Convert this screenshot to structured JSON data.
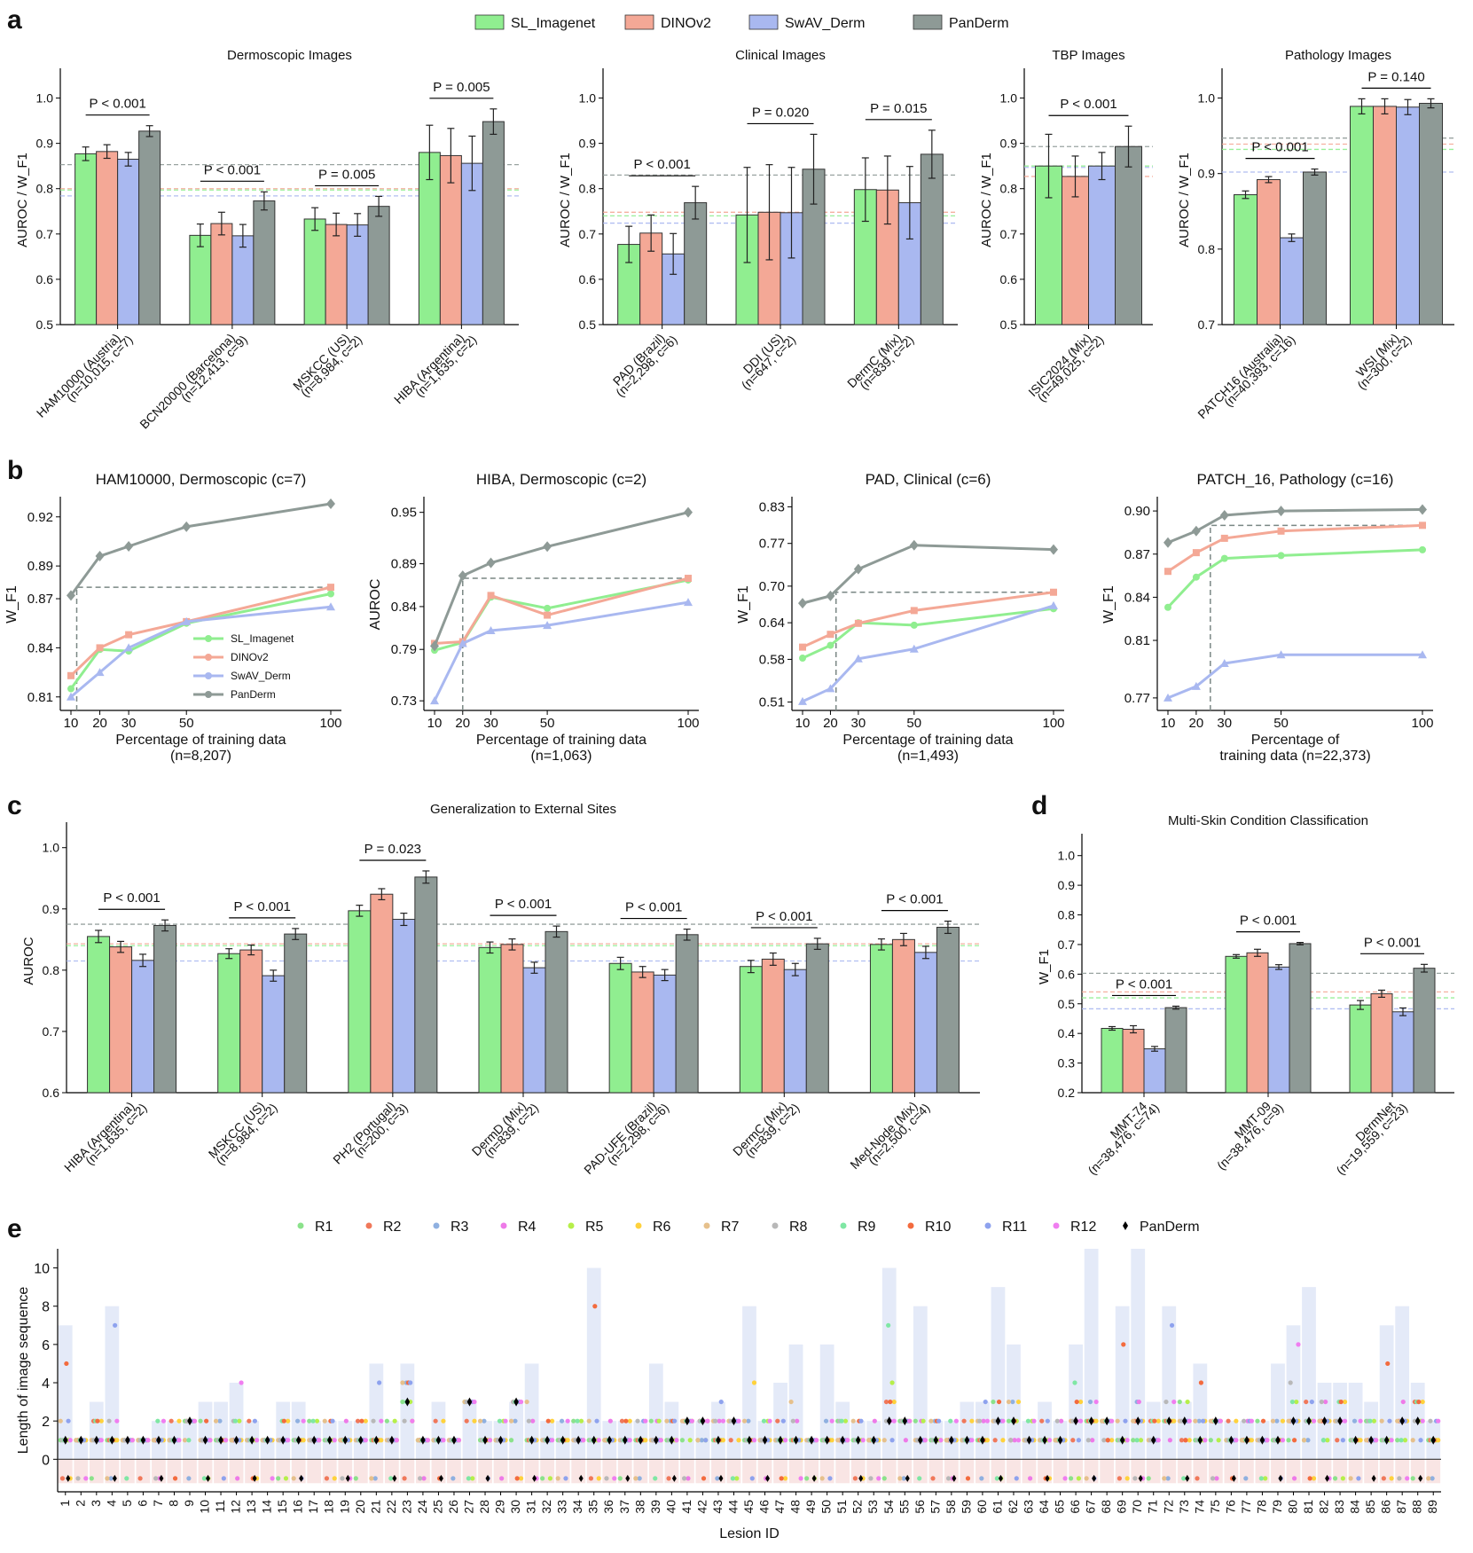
{
  "colors": {
    "SL_Imagenet": "#90EE90",
    "DINOv2": "#F4A896",
    "SwAV_Derm": "#A9B8F0",
    "PanDerm": "#8E9A96",
    "axis": "#000000"
  },
  "panel_letters": [
    "a",
    "b",
    "c",
    "d",
    "e"
  ],
  "legend_top": [
    "SL_Imagenet",
    "DINOv2",
    "SwAV_Derm",
    "PanDerm"
  ],
  "chart_data": [
    {
      "id": "a1",
      "type": "bar",
      "title": "Dermoscopic Images",
      "ylabel": "AUROC / W_F1",
      "ylim": [
        0.5,
        1.05
      ],
      "yticks": [
        "0.5",
        "0.6",
        "0.7",
        "0.8",
        "0.9",
        "1.0"
      ],
      "categories": [
        "HAM10000 (Austria)\n(n=10,015, c=7)",
        "BCN20000 (Barcelona)\n(n=12,413, c=9)",
        "MSKCC (US)\n(n=8,984, c=2)",
        "HIBA (Argentina)\n(n=1,635, c=2)"
      ],
      "series": [
        {
          "name": "SL_Imagenet",
          "values": [
            0.877,
            0.697,
            0.733,
            0.88
          ],
          "err": [
            0.015,
            0.025,
            0.025,
            0.06
          ]
        },
        {
          "name": "DINOv2",
          "values": [
            0.882,
            0.723,
            0.721,
            0.873
          ],
          "err": [
            0.015,
            0.025,
            0.025,
            0.06
          ]
        },
        {
          "name": "SwAV_Derm",
          "values": [
            0.865,
            0.696,
            0.72,
            0.856
          ],
          "err": [
            0.015,
            0.025,
            0.025,
            0.06
          ]
        },
        {
          "name": "PanDerm",
          "values": [
            0.927,
            0.773,
            0.761,
            0.948
          ],
          "err": [
            0.012,
            0.02,
            0.022,
            0.028
          ]
        }
      ],
      "hlines": {
        "PanDerm": 0.853,
        "SL_Imagenet": 0.797,
        "DINOv2": 0.8,
        "SwAV_Derm": 0.784
      },
      "pvalues": [
        "P < 0.001",
        "P < 0.001",
        "P = 0.005",
        "P = 0.005"
      ]
    },
    {
      "id": "a2",
      "type": "bar",
      "title": "Clinical Images",
      "ylabel": "AUROC / W_F1",
      "ylim": [
        0.5,
        1.05
      ],
      "yticks": [
        "0.5",
        "0.6",
        "0.7",
        "0.8",
        "0.9",
        "1.0"
      ],
      "categories": [
        "PAD (Brazil)\n(n=2,298, c=6)",
        "DDI (US)\n(n=647, c=2)",
        "DermC (Mix)\n(n=839, c=2)"
      ],
      "series": [
        {
          "name": "SL_Imagenet",
          "values": [
            0.677,
            0.742,
            0.798
          ],
          "err": [
            0.04,
            0.105,
            0.07
          ]
        },
        {
          "name": "DINOv2",
          "values": [
            0.702,
            0.748,
            0.797
          ],
          "err": [
            0.04,
            0.105,
            0.075
          ]
        },
        {
          "name": "SwAV_Derm",
          "values": [
            0.656,
            0.747,
            0.769
          ],
          "err": [
            0.045,
            0.1,
            0.08
          ]
        },
        {
          "name": "PanDerm",
          "values": [
            0.769,
            0.843,
            0.876
          ],
          "err": [
            0.036,
            0.077,
            0.053
          ]
        }
      ],
      "hlines": {
        "PanDerm": 0.83,
        "SL_Imagenet": 0.74,
        "DINOv2": 0.748,
        "SwAV_Derm": 0.724
      },
      "pvalues": [
        "P < 0.001",
        "P = 0.020",
        "P = 0.015"
      ]
    },
    {
      "id": "a3",
      "type": "bar",
      "title": "TBP Images",
      "ylabel": "AUROC / W_F1",
      "ylim": [
        0.5,
        1.05
      ],
      "yticks": [
        "0.5",
        "0.6",
        "0.7",
        "0.8",
        "0.9",
        "1.0"
      ],
      "categories": [
        "ISIC2024 (Mix)\n(n=49,025, c=2)"
      ],
      "series": [
        {
          "name": "SL_Imagenet",
          "values": [
            0.85
          ],
          "err": [
            0.07
          ]
        },
        {
          "name": "DINOv2",
          "values": [
            0.827
          ],
          "err": [
            0.045
          ]
        },
        {
          "name": "SwAV_Derm",
          "values": [
            0.85
          ],
          "err": [
            0.03
          ]
        },
        {
          "name": "PanDerm",
          "values": [
            0.893
          ],
          "err": [
            0.045
          ]
        }
      ],
      "hlines": {
        "PanDerm": 0.893,
        "SL_Imagenet": 0.85,
        "DINOv2": 0.827,
        "SwAV_Derm": 0.847
      },
      "pvalues": [
        "P < 0.001"
      ]
    },
    {
      "id": "a4",
      "type": "bar",
      "title": "Pathology Images",
      "ylabel": "AUROC / W_F1",
      "ylim": [
        0.7,
        1.03
      ],
      "yticks": [
        "0.7",
        "0.8",
        "0.9",
        "1.0"
      ],
      "categories": [
        "PATCH16 (Australia)\n(n=40,393, c=16)",
        "WSI (Mix)\n(n=300, c=2)"
      ],
      "series": [
        {
          "name": "SL_Imagenet",
          "values": [
            0.872,
            0.989
          ],
          "err": [
            0.005,
            0.01
          ]
        },
        {
          "name": "DINOv2",
          "values": [
            0.892,
            0.989
          ],
          "err": [
            0.004,
            0.01
          ]
        },
        {
          "name": "SwAV_Derm",
          "values": [
            0.815,
            0.988
          ],
          "err": [
            0.005,
            0.01
          ]
        },
        {
          "name": "PanDerm",
          "values": [
            0.902,
            0.993
          ],
          "err": [
            0.004,
            0.006
          ]
        }
      ],
      "hlines": {
        "PanDerm": 0.947,
        "SL_Imagenet": 0.932,
        "DINOv2": 0.939,
        "SwAV_Derm": 0.902
      },
      "pvalues": [
        "P < 0.001",
        "P = 0.140"
      ]
    },
    {
      "id": "b1",
      "type": "line",
      "title": "HAM10000, Dermoscopic (c=7)",
      "ylabel": "W_F1",
      "xlabel": "Percentage of training data\n(n=8,207)",
      "x": [
        10,
        20,
        30,
        50,
        100
      ],
      "ylim": [
        0.805,
        0.928
      ],
      "yticks": [
        0.81,
        0.84,
        0.87,
        0.89,
        0.92
      ],
      "ytick_labels": [
        "0.81",
        "0.84",
        "0.87",
        "0.89",
        "0.92"
      ],
      "series": [
        {
          "name": "SL_Imagenet",
          "values": [
            0.815,
            0.839,
            0.838,
            0.855,
            0.873
          ]
        },
        {
          "name": "DINOv2",
          "values": [
            0.823,
            0.84,
            0.848,
            0.856,
            0.877
          ]
        },
        {
          "name": "SwAV_Derm",
          "values": [
            0.81,
            0.825,
            0.84,
            0.856,
            0.865
          ]
        },
        {
          "name": "PanDerm",
          "values": [
            0.872,
            0.896,
            0.902,
            0.914,
            0.928
          ]
        }
      ],
      "dashed": {
        "x": 12,
        "y": 0.877
      },
      "legend": true
    },
    {
      "id": "b2",
      "type": "line",
      "title": "HIBA, Dermoscopic (c=2)",
      "ylabel": "AUROC",
      "xlabel": "Percentage of training data\n(n=1,063)",
      "x": [
        10,
        20,
        30,
        50,
        100
      ],
      "ylim": [
        0.725,
        0.96
      ],
      "yticks": [
        0.73,
        0.79,
        0.84,
        0.89,
        0.95
      ],
      "ytick_labels": [
        "0.73",
        "0.79",
        "0.84",
        "0.89",
        "0.95"
      ],
      "series": [
        {
          "name": "SL_Imagenet",
          "values": [
            0.789,
            0.798,
            0.851,
            0.838,
            0.871
          ]
        },
        {
          "name": "DINOv2",
          "values": [
            0.797,
            0.799,
            0.853,
            0.83,
            0.873
          ]
        },
        {
          "name": "SwAV_Derm",
          "values": [
            0.73,
            0.797,
            0.812,
            0.818,
            0.845
          ]
        },
        {
          "name": "PanDerm",
          "values": [
            0.794,
            0.876,
            0.891,
            0.91,
            0.95
          ]
        }
      ],
      "dashed": {
        "x": 20,
        "y": 0.873
      }
    },
    {
      "id": "b3",
      "type": "line",
      "title": "PAD, Clinical (c=6)",
      "ylabel": "W_F1",
      "xlabel": "Percentage of training data\n(n=1,493)",
      "x": [
        10,
        20,
        30,
        50,
        100
      ],
      "ylim": [
        0.505,
        0.835
      ],
      "yticks": [
        0.51,
        0.58,
        0.64,
        0.7,
        0.77,
        0.83
      ],
      "ytick_labels": [
        "0.51",
        "0.58",
        "0.64",
        "0.70",
        "0.77",
        "0.83"
      ],
      "series": [
        {
          "name": "SL_Imagenet",
          "values": [
            0.582,
            0.603,
            0.64,
            0.636,
            0.663
          ]
        },
        {
          "name": "DINOv2",
          "values": [
            0.6,
            0.621,
            0.639,
            0.66,
            0.69
          ]
        },
        {
          "name": "SwAV_Derm",
          "values": [
            0.511,
            0.532,
            0.581,
            0.597,
            0.668
          ]
        },
        {
          "name": "PanDerm",
          "values": [
            0.672,
            0.684,
            0.728,
            0.767,
            0.76
          ]
        }
      ],
      "dashed": {
        "x": 22,
        "y": 0.69
      }
    },
    {
      "id": "b4",
      "type": "line",
      "title": "PATCH_16, Pathology (c=16)",
      "ylabel": "W_F1",
      "xlabel": "Percentage of\ntraining data (n=22,373)",
      "x": [
        10,
        20,
        30,
        50,
        100
      ],
      "ylim": [
        0.765,
        0.905
      ],
      "yticks": [
        0.77,
        0.81,
        0.84,
        0.87,
        0.9
      ],
      "ytick_labels": [
        "0.77",
        "0.81",
        "0.84",
        "0.87",
        "0.90"
      ],
      "series": [
        {
          "name": "SL_Imagenet",
          "values": [
            0.833,
            0.854,
            0.867,
            0.869,
            0.873
          ]
        },
        {
          "name": "DINOv2",
          "values": [
            0.858,
            0.871,
            0.881,
            0.886,
            0.89
          ]
        },
        {
          "name": "SwAV_Derm",
          "values": [
            0.77,
            0.778,
            0.794,
            0.8,
            0.8
          ]
        },
        {
          "name": "PanDerm",
          "values": [
            0.878,
            0.886,
            0.897,
            0.9,
            0.901
          ]
        }
      ],
      "dashed": {
        "x": 25,
        "y": 0.89
      }
    },
    {
      "id": "c",
      "type": "bar",
      "title": "Generalization to External Sites",
      "ylabel": "AUROC",
      "ylim": [
        0.6,
        1.03
      ],
      "yticks": [
        "0.6",
        "0.7",
        "0.8",
        "0.9",
        "1.0"
      ],
      "categories": [
        "HIBA (Argentina)\n(n=1,635, c=2)",
        "MSKCC (US)\n(n=8,984, c=2)",
        "PH2 (Portugal)\n(n=200, c=3)",
        "DermD (Mix)\n(n=839, c=2)",
        "PAD-UFE (Brazil)\n(n=2,298, c=6)",
        "DermC (Mix)\n(n=839, c=2)",
        "Med-Node (Mix)\n(n=2,500, c=4)"
      ],
      "series": [
        {
          "name": "SL_Imagenet",
          "values": [
            0.855,
            0.827,
            0.897,
            0.837,
            0.811,
            0.806,
            0.842
          ],
          "err": [
            0.01,
            0.008,
            0.009,
            0.009,
            0.01,
            0.01,
            0.009
          ]
        },
        {
          "name": "DINOv2",
          "values": [
            0.838,
            0.833,
            0.924,
            0.842,
            0.797,
            0.818,
            0.85
          ],
          "err": [
            0.009,
            0.008,
            0.009,
            0.009,
            0.009,
            0.01,
            0.01
          ]
        },
        {
          "name": "SwAV_Derm",
          "values": [
            0.816,
            0.791,
            0.883,
            0.804,
            0.792,
            0.801,
            0.829
          ],
          "err": [
            0.01,
            0.009,
            0.01,
            0.009,
            0.009,
            0.01,
            0.01
          ]
        },
        {
          "name": "PanDerm",
          "values": [
            0.873,
            0.859,
            0.952,
            0.863,
            0.858,
            0.843,
            0.87
          ],
          "err": [
            0.009,
            0.009,
            0.01,
            0.009,
            0.009,
            0.009,
            0.01
          ]
        }
      ],
      "hlines": {
        "PanDerm": 0.875,
        "SL_Imagenet": 0.84,
        "DINOv2": 0.843,
        "SwAV_Derm": 0.815
      },
      "pvalues": [
        "P < 0.001",
        "P < 0.001",
        "P = 0.023",
        "P < 0.001",
        "P < 0.001",
        "P < 0.001",
        "P < 0.001"
      ]
    },
    {
      "id": "d",
      "type": "bar",
      "title": "Multi-Skin Condition Classification",
      "ylabel": "W_F1",
      "ylim": [
        0.2,
        1.05
      ],
      "yticks": [
        "0.2",
        "0.3",
        "0.4",
        "0.5",
        "0.6",
        "0.7",
        "0.8",
        "0.9",
        "1.0"
      ],
      "categories": [
        "MMT-74\n(n=38,476, c=74)",
        "MMT-09\n(n=38,476, c=9)",
        "DermNet\n(n=19,559, c=23)"
      ],
      "series": [
        {
          "name": "SL_Imagenet",
          "values": [
            0.417,
            0.66,
            0.496
          ],
          "err": [
            0.006,
            0.006,
            0.015
          ]
        },
        {
          "name": "DINOv2",
          "values": [
            0.414,
            0.672,
            0.534
          ],
          "err": [
            0.012,
            0.012,
            0.012
          ]
        },
        {
          "name": "SwAV_Derm",
          "values": [
            0.348,
            0.624,
            0.473
          ],
          "err": [
            0.008,
            0.008,
            0.013
          ]
        },
        {
          "name": "PanDerm",
          "values": [
            0.487,
            0.703,
            0.62
          ],
          "err": [
            0.005,
            0.004,
            0.013
          ]
        }
      ],
      "hlines": {
        "PanDerm": 0.603,
        "SL_Imagenet": 0.52,
        "DINOv2": 0.54,
        "SwAV_Derm": 0.483
      },
      "pvalues": [
        "P < 0.001",
        "P < 0.001",
        "P < 0.001"
      ]
    },
    {
      "id": "e",
      "type": "scatter",
      "ylabel": "Length of image sequence",
      "xlabel": "Lesion ID",
      "ylim": [
        -1.7,
        11
      ],
      "yticks": [
        "0",
        "2",
        "4",
        "6",
        "8",
        "10"
      ],
      "reader_names": [
        "R1",
        "R2",
        "R3",
        "R4",
        "R5",
        "R6",
        "R7",
        "R8",
        "R9",
        "R10",
        "R11",
        "R12",
        "PanDerm"
      ],
      "reader_colors": [
        "#8be28b",
        "#f0785a",
        "#8fb0e0",
        "#ee7ae8",
        "#b6ef4a",
        "#ffd23c",
        "#e6c08c",
        "#b8b8b8",
        "#7fe7a4",
        "#f36b3e",
        "#8ea2ee",
        "#f07ef0",
        "#000000"
      ],
      "lesion_ids": [
        "1",
        "2",
        "3",
        "4",
        "5",
        "6",
        "7",
        "8",
        "9",
        "10",
        "11",
        "12",
        "13",
        "14",
        "15",
        "16",
        "17",
        "18",
        "19",
        "20",
        "21",
        "22",
        "23",
        "24",
        "25",
        "26",
        "27",
        "28",
        "29",
        "30",
        "31",
        "32",
        "33",
        "34",
        "35",
        "36",
        "37",
        "38",
        "39",
        "40",
        "41",
        "42",
        "43",
        "44",
        "45",
        "46",
        "47",
        "48",
        "49",
        "50",
        "51",
        "52",
        "53",
        "54",
        "55",
        "56",
        "57",
        "58",
        "59",
        "60",
        "61",
        "62",
        "63",
        "64",
        "65",
        "66",
        "67",
        "68",
        "69",
        "70",
        "71",
        "72",
        "73",
        "74",
        "75",
        "76",
        "77",
        "78",
        "79",
        "80",
        "81",
        "82",
        "83",
        "84",
        "85",
        "86",
        "87",
        "88",
        "89"
      ],
      "lengths": [
        7,
        1,
        3,
        8,
        1,
        1,
        2,
        2,
        2,
        3,
        3,
        4,
        2,
        1,
        3,
        3,
        2,
        2,
        2,
        2,
        5,
        2,
        5,
        1,
        3,
        1,
        3,
        2,
        2,
        3,
        5,
        2,
        2,
        2,
        10,
        2,
        2,
        2,
        5,
        3,
        2,
        2,
        3,
        2,
        8,
        2,
        4,
        6,
        1,
        6,
        3,
        2,
        2,
        10,
        2,
        8,
        2,
        2,
        3,
        3,
        9,
        6,
        2,
        3,
        2,
        6,
        11,
        2,
        8,
        11,
        3,
        8,
        3,
        5,
        2,
        2,
        2,
        2,
        5,
        7,
        9,
        4,
        4,
        4,
        3,
        7,
        8,
        4,
        2
      ],
      "panderm": [
        1,
        1,
        1,
        1,
        1,
        1,
        1,
        1,
        2,
        1,
        1,
        1,
        1,
        1,
        1,
        1,
        1,
        1,
        1,
        1,
        1,
        1,
        3,
        1,
        1,
        1,
        3,
        1,
        1,
        3,
        1,
        1,
        1,
        1,
        1,
        1,
        1,
        1,
        1,
        1,
        2,
        2,
        1,
        2,
        1,
        1,
        1,
        1,
        1,
        1,
        1,
        1,
        1,
        2,
        2,
        1,
        1,
        1,
        1,
        1,
        2,
        2,
        1,
        1,
        1,
        2,
        2,
        2,
        1,
        2,
        1,
        2,
        2,
        1,
        2,
        1,
        1,
        1,
        1,
        2,
        2,
        2,
        2,
        1,
        1,
        1,
        2,
        2,
        1
      ],
      "reader_scatter_note": ""
    }
  ]
}
